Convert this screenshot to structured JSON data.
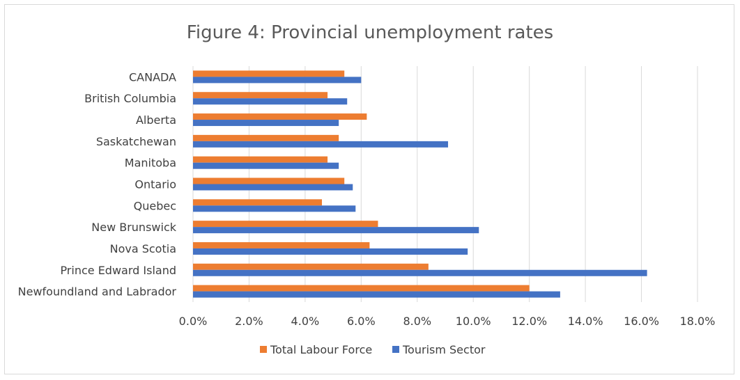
{
  "chart_data": {
    "type": "bar",
    "orientation": "horizontal",
    "title": "Figure 4: Provincial unemployment rates",
    "categories": [
      "CANADA",
      "British Columbia",
      "Alberta",
      "Saskatchewan",
      "Manitoba",
      "Ontario",
      "Quebec",
      "New Brunswick",
      "Nova Scotia",
      "Prince Edward Island",
      "Newfoundland and Labrador"
    ],
    "series": [
      {
        "name": "Total Labour Force",
        "color": "#ED7D31",
        "values": [
          5.4,
          4.8,
          6.2,
          5.2,
          4.8,
          5.4,
          4.6,
          6.6,
          6.3,
          8.4,
          12.0
        ]
      },
      {
        "name": "Tourism Sector",
        "color": "#4472C4",
        "values": [
          6.0,
          5.5,
          5.2,
          9.1,
          5.2,
          5.7,
          5.8,
          10.2,
          9.8,
          16.2,
          13.1
        ]
      }
    ],
    "xlim": [
      0,
      18
    ],
    "xticks": [
      "0.0%",
      "2.0%",
      "4.0%",
      "6.0%",
      "8.0%",
      "10.0%",
      "12.0%",
      "14.0%",
      "16.0%",
      "18.0%"
    ],
    "grid": true,
    "legend_position": "bottom"
  }
}
